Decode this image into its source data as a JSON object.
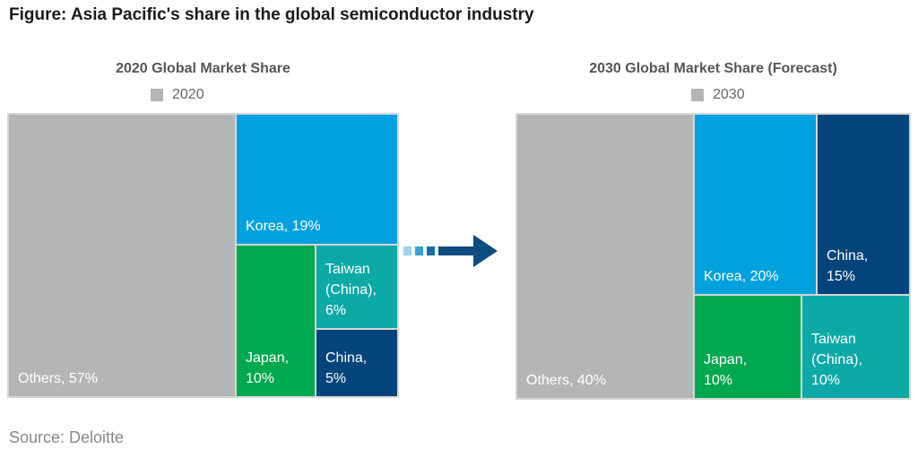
{
  "figure_title": "Figure: Asia Pacific's share in the global semiconductor industry",
  "source": "Source: Deloitte",
  "colors": {
    "others": "#b3b5b6",
    "korea": "#00a1de",
    "japan": "#00a84f",
    "taiwan": "#0da9a6",
    "china": "#03447a",
    "arrow": "#0f4c81",
    "arrow_light": "#9fd3ee",
    "arrow_mid": "#2ea3dc"
  },
  "chart_data": [
    {
      "type": "treemap",
      "title": "2020 Global Market Share",
      "legend": "2020",
      "items": [
        {
          "name": "Others",
          "value": 57,
          "label": "Others, 57%"
        },
        {
          "name": "Korea",
          "value": 19,
          "label": "Korea, 19%"
        },
        {
          "name": "Japan",
          "value": 10,
          "label": "Japan,\n10%"
        },
        {
          "name": "Taiwan (China)",
          "value": 6,
          "label": "Taiwan\n(China),\n6%"
        },
        {
          "name": "China",
          "value": 5,
          "label": "China,\n5%"
        }
      ]
    },
    {
      "type": "treemap",
      "title": "2030 Global Market Share (Forecast)",
      "legend": "2030",
      "items": [
        {
          "name": "Others",
          "value": 40,
          "label": "Others, 40%"
        },
        {
          "name": "Korea",
          "value": 20,
          "label": "Korea, 20%"
        },
        {
          "name": "China",
          "value": 15,
          "label": "China,\n15%"
        },
        {
          "name": "Japan",
          "value": 10,
          "label": "Japan,\n10%"
        },
        {
          "name": "Taiwan (China)",
          "value": 10,
          "label": "Taiwan\n(China),\n10%"
        }
      ]
    }
  ]
}
